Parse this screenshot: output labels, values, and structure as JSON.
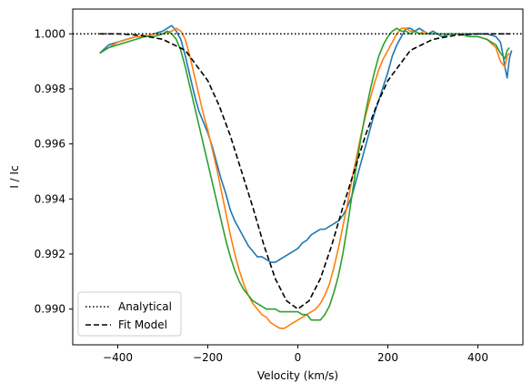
{
  "chart_data": {
    "type": "line",
    "xlabel": "Velocity (km/s)",
    "ylabel": "I / Ic",
    "xlim": [
      -500,
      500
    ],
    "ylim": [
      0.9887,
      1.0009
    ],
    "xticks": [
      -400,
      -200,
      0,
      200,
      400
    ],
    "xtick_labels": [
      "−400",
      "−200",
      "0",
      "200",
      "400"
    ],
    "yticks": [
      0.99,
      0.992,
      0.994,
      0.996,
      0.998,
      1.0
    ],
    "ytick_labels": [
      "0.990",
      "0.992",
      "0.994",
      "0.996",
      "0.998",
      "1.000"
    ],
    "grid": false,
    "legend_position": "lower-left",
    "series": [
      {
        "name": "Analytical",
        "color": "#000000",
        "style": "dotted",
        "x": [
          -500,
          500
        ],
        "y": [
          1.0,
          1.0
        ]
      },
      {
        "name": "Fit Model",
        "color": "#000000",
        "style": "dashed",
        "x": [
          -440,
          -400,
          -350,
          -300,
          -250,
          -200,
          -175,
          -150,
          -125,
          -100,
          -75,
          -50,
          -25,
          0,
          25,
          50,
          75,
          100,
          125,
          150,
          175,
          200,
          250,
          300,
          350,
          400,
          470
        ],
        "y": [
          1.0,
          1.0,
          0.99995,
          0.9998,
          0.9994,
          0.9983,
          0.9974,
          0.9963,
          0.995,
          0.9937,
          0.9923,
          0.9911,
          0.9903,
          0.99,
          0.9903,
          0.9911,
          0.9923,
          0.9937,
          0.995,
          0.9963,
          0.9974,
          0.9983,
          0.9994,
          0.9998,
          0.99995,
          1.0,
          1.0
        ]
      },
      {
        "name": "",
        "color": "#1f77b4",
        "style": "solid",
        "x": [
          -440,
          -420,
          -400,
          -380,
          -360,
          -340,
          -320,
          -300,
          -290,
          -280,
          -270,
          -260,
          -250,
          -240,
          -230,
          -220,
          -210,
          -200,
          -190,
          -180,
          -170,
          -160,
          -150,
          -140,
          -130,
          -120,
          -110,
          -100,
          -90,
          -80,
          -70,
          -60,
          -50,
          -40,
          -30,
          -20,
          -10,
          0,
          10,
          20,
          30,
          40,
          50,
          60,
          70,
          80,
          90,
          100,
          110,
          120,
          130,
          140,
          150,
          160,
          170,
          180,
          190,
          200,
          210,
          220,
          230,
          240,
          250,
          260,
          270,
          280,
          290,
          300,
          310,
          320,
          340,
          360,
          380,
          400,
          420,
          440,
          450,
          455,
          460,
          465,
          470,
          475
        ],
        "y": [
          0.9993,
          0.9996,
          0.9997,
          0.9998,
          0.9999,
          0.9999,
          1.0,
          1.0001,
          1.0002,
          1.0003,
          1.0001,
          0.9998,
          0.9992,
          0.9985,
          0.9978,
          0.9972,
          0.9968,
          0.9964,
          0.9959,
          0.9953,
          0.9947,
          0.9942,
          0.9936,
          0.9932,
          0.9929,
          0.9926,
          0.9923,
          0.9921,
          0.9919,
          0.9919,
          0.9918,
          0.9917,
          0.9917,
          0.9918,
          0.9919,
          0.992,
          0.9921,
          0.9922,
          0.9924,
          0.9925,
          0.9927,
          0.9928,
          0.9929,
          0.9929,
          0.993,
          0.9931,
          0.9932,
          0.9934,
          0.9937,
          0.9941,
          0.9947,
          0.9953,
          0.9959,
          0.9965,
          0.9971,
          0.9976,
          0.9981,
          0.9986,
          0.9992,
          0.9996,
          0.9999,
          1.0002,
          1.0002,
          1.0001,
          1.0002,
          1.0001,
          1.0,
          1.0001,
          1.0,
          0.9999,
          1.0,
          1.0,
          1.0,
          1.0,
          1.0,
          0.9999,
          0.9997,
          0.9993,
          0.9988,
          0.9984,
          0.9991,
          0.9994
        ]
      },
      {
        "name": "",
        "color": "#ff7f0e",
        "style": "solid",
        "x": [
          -440,
          -420,
          -400,
          -380,
          -360,
          -340,
          -320,
          -300,
          -280,
          -270,
          -260,
          -250,
          -240,
          -230,
          -220,
          -210,
          -200,
          -190,
          -180,
          -170,
          -160,
          -150,
          -140,
          -130,
          -120,
          -110,
          -100,
          -90,
          -80,
          -70,
          -60,
          -50,
          -40,
          -30,
          -20,
          -10,
          0,
          10,
          20,
          30,
          40,
          50,
          60,
          70,
          80,
          90,
          100,
          110,
          120,
          130,
          140,
          150,
          160,
          170,
          180,
          190,
          200,
          210,
          220,
          230,
          240,
          250,
          260,
          270,
          280,
          290,
          300,
          320,
          340,
          360,
          380,
          400,
          420,
          440,
          450,
          460,
          465,
          470
        ],
        "y": [
          0.9993,
          0.9995,
          0.9997,
          0.9998,
          0.9999,
          0.9999,
          1.0,
          1.0,
          1.0001,
          1.0002,
          1.0001,
          0.9998,
          0.9992,
          0.9985,
          0.9978,
          0.9971,
          0.9965,
          0.9958,
          0.9951,
          0.9943,
          0.9935,
          0.9927,
          0.992,
          0.9914,
          0.9909,
          0.9905,
          0.9902,
          0.99,
          0.9898,
          0.9897,
          0.9895,
          0.9894,
          0.9893,
          0.9893,
          0.9894,
          0.9895,
          0.9896,
          0.9897,
          0.9898,
          0.9899,
          0.99,
          0.9902,
          0.9905,
          0.9909,
          0.9915,
          0.9922,
          0.993,
          0.9938,
          0.9947,
          0.9955,
          0.9963,
          0.997,
          0.9976,
          0.9982,
          0.9987,
          0.9991,
          0.9994,
          0.9997,
          1.0,
          1.0002,
          1.0002,
          1.0001,
          1.0001,
          1.0,
          1.0001,
          1.0,
          1.0,
          1.0,
          1.0,
          1.0,
          0.9999,
          0.9999,
          0.9998,
          0.9995,
          0.999,
          0.9988,
          0.9992,
          0.9993
        ]
      },
      {
        "name": "",
        "color": "#2ca02c",
        "style": "solid",
        "x": [
          -440,
          -420,
          -400,
          -380,
          -360,
          -340,
          -320,
          -300,
          -290,
          -280,
          -270,
          -260,
          -250,
          -240,
          -230,
          -220,
          -210,
          -200,
          -190,
          -180,
          -170,
          -160,
          -150,
          -140,
          -130,
          -120,
          -110,
          -100,
          -90,
          -80,
          -70,
          -60,
          -50,
          -40,
          -30,
          -20,
          -10,
          0,
          10,
          20,
          30,
          40,
          50,
          60,
          70,
          80,
          90,
          100,
          110,
          120,
          130,
          140,
          150,
          160,
          170,
          180,
          190,
          200,
          210,
          220,
          230,
          240,
          250,
          260,
          270,
          280,
          290,
          300,
          320,
          340,
          360,
          380,
          400,
          420,
          440,
          450,
          460,
          465,
          470
        ],
        "y": [
          0.9993,
          0.9995,
          0.9996,
          0.9997,
          0.9998,
          0.9999,
          0.9999,
          1.0,
          1.0001,
          1.0,
          0.9998,
          0.9994,
          0.9988,
          0.9981,
          0.9974,
          0.9967,
          0.996,
          0.9953,
          0.9946,
          0.9939,
          0.9932,
          0.9925,
          0.9919,
          0.9914,
          0.991,
          0.9907,
          0.9905,
          0.9903,
          0.9902,
          0.9901,
          0.99,
          0.99,
          0.99,
          0.9899,
          0.9899,
          0.9899,
          0.9899,
          0.9899,
          0.9898,
          0.9898,
          0.9896,
          0.9896,
          0.9896,
          0.9898,
          0.9901,
          0.9906,
          0.9912,
          0.992,
          0.993,
          0.9941,
          0.9952,
          0.9962,
          0.9971,
          0.9979,
          0.9986,
          0.9992,
          0.9996,
          0.9999,
          1.0001,
          1.0002,
          1.0001,
          1.0001,
          1.0,
          1.0001,
          1.0,
          1.0,
          1.0,
          1.0,
          1.0,
          1.0,
          1.0,
          0.9999,
          0.9999,
          0.9998,
          0.9996,
          0.9993,
          0.9991,
          0.9994,
          0.9995
        ]
      }
    ]
  }
}
